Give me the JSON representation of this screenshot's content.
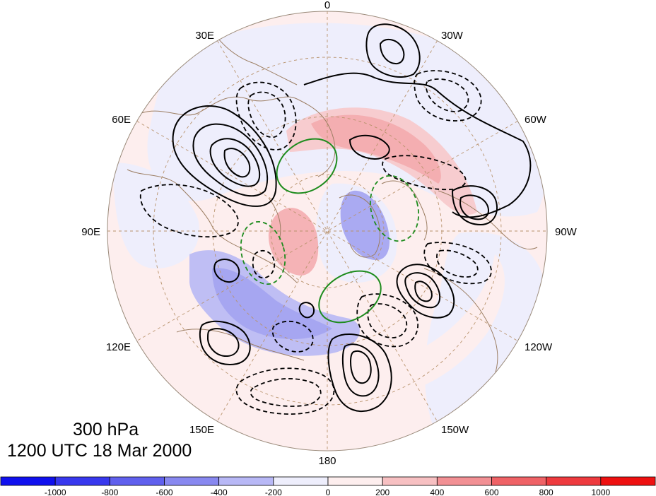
{
  "map": {
    "projection": "north-polar-stereographic",
    "longitude_labels": [
      "0",
      "30W",
      "60W",
      "90W",
      "120W",
      "150W",
      "180",
      "150E",
      "120E",
      "90E",
      "60E",
      "30E"
    ],
    "fill_colors": {
      "positive": "#f07b7f",
      "positive_light": "#f7c8ca",
      "positive_faint": "#fdeeee",
      "negative": "#7b7bee",
      "negative_light": "#c8c8f6",
      "negative_faint": "#eeeefc"
    },
    "contour_colors": {
      "black": "#000000",
      "green": "#1e8c1e"
    },
    "coastline_color": "#9c7e63"
  },
  "title": {
    "level": "300 hPa",
    "datetime": "1200 UTC 18 Mar 2000"
  },
  "colorbar": {
    "labels": [
      "-1000",
      "-800",
      "-600",
      "-400",
      "-200",
      "0",
      "200",
      "400",
      "600",
      "800",
      "1000"
    ],
    "colors": [
      "#1010ee",
      "#3838ee",
      "#6060ee",
      "#8888f0",
      "#b8b8f6",
      "#eeeefc",
      "#fdeeee",
      "#f7c0c2",
      "#f29094",
      "#ef6266",
      "#ee3a3e",
      "#ee1010"
    ]
  }
}
